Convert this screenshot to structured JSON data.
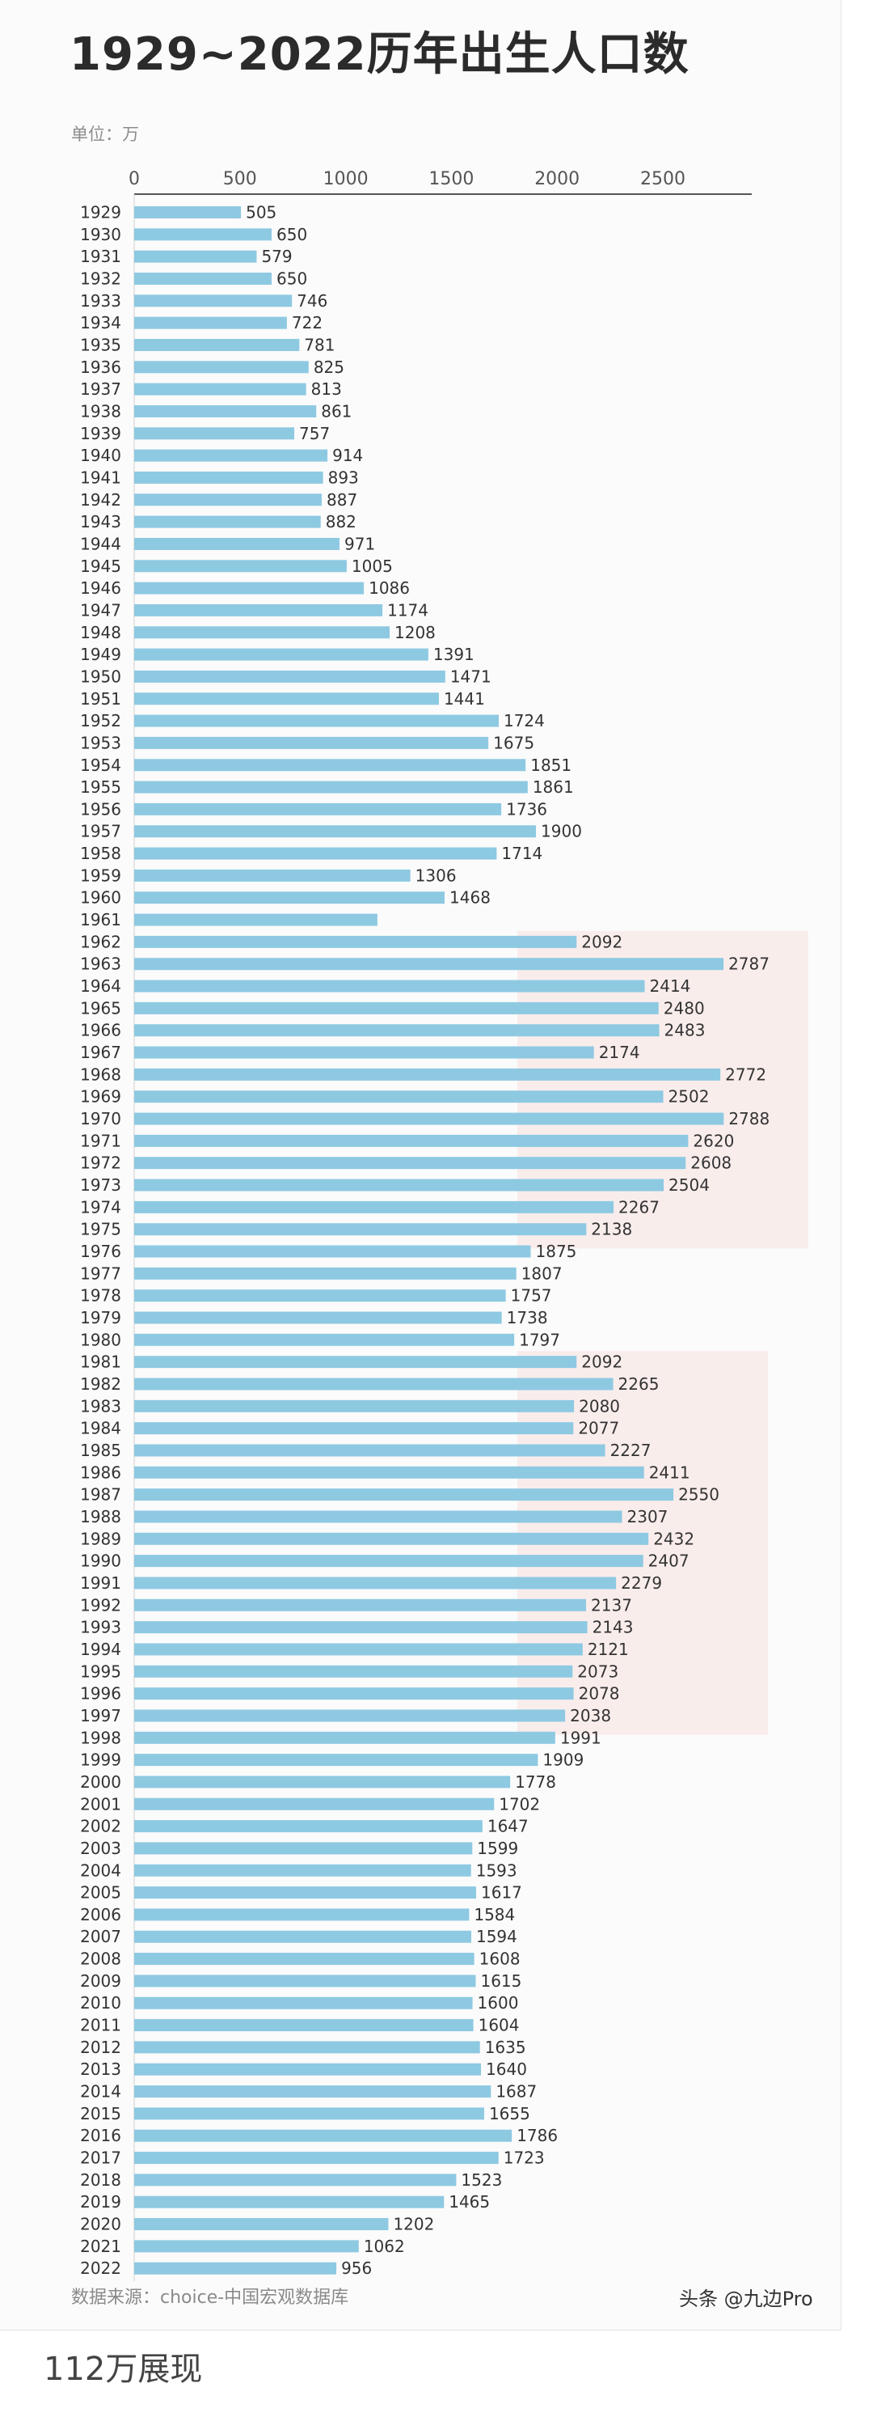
{
  "title": "1929~2022历年出生人口数",
  "unit_label": "单位：万",
  "source_label": "数据来源：choice-中国宏观数据库",
  "watermark": "头条 @九边Pro",
  "caption": "112万展现",
  "colors": {
    "bar": "#8ec9e2",
    "label": "#333333",
    "axis": "#555555",
    "highlight": "#f9e4e2"
  },
  "chart_data": {
    "type": "bar",
    "orientation": "horizontal",
    "title": "1929~2022历年出生人口数",
    "xlabel": "",
    "ylabel": "",
    "unit": "万",
    "xlim": [
      0,
      2900
    ],
    "x_ticks": [
      0,
      500,
      1000,
      1500,
      2000,
      2500
    ],
    "grid": false,
    "categories": [
      "1929",
      "1930",
      "1931",
      "1932",
      "1933",
      "1934",
      "1935",
      "1936",
      "1937",
      "1938",
      "1939",
      "1940",
      "1941",
      "1942",
      "1943",
      "1944",
      "1945",
      "1946",
      "1947",
      "1948",
      "1949",
      "1950",
      "1951",
      "1952",
      "1953",
      "1954",
      "1955",
      "1956",
      "1957",
      "1958",
      "1959",
      "1960",
      "1961",
      "1962",
      "1963",
      "1964",
      "1965",
      "1966",
      "1967",
      "1968",
      "1969",
      "1970",
      "1971",
      "1972",
      "1973",
      "1974",
      "1975",
      "1976",
      "1977",
      "1978",
      "1979",
      "1980",
      "1981",
      "1982",
      "1983",
      "1984",
      "1985",
      "1986",
      "1987",
      "1988",
      "1989",
      "1990",
      "1991",
      "1992",
      "1993",
      "1994",
      "1995",
      "1996",
      "1997",
      "1998",
      "1999",
      "2000",
      "2001",
      "2002",
      "2003",
      "2004",
      "2005",
      "2006",
      "2007",
      "2008",
      "2009",
      "2010",
      "2011",
      "2012",
      "2013",
      "2014",
      "2015",
      "2016",
      "2017",
      "2018",
      "2019",
      "2020",
      "2021",
      "2022"
    ],
    "values": [
      505,
      650,
      579,
      650,
      746,
      722,
      781,
      825,
      813,
      861,
      757,
      914,
      893,
      887,
      882,
      971,
      1005,
      1086,
      1174,
      1208,
      1391,
      1471,
      1441,
      1724,
      1675,
      1851,
      1861,
      1736,
      1900,
      1714,
      1306,
      1468,
      1150,
      2092,
      2787,
      2414,
      2480,
      2483,
      2174,
      2772,
      2502,
      2788,
      2620,
      2608,
      2504,
      2267,
      2138,
      1875,
      1807,
      1757,
      1738,
      1797,
      2092,
      2265,
      2080,
      2077,
      2227,
      2411,
      2550,
      2307,
      2432,
      2407,
      2279,
      2137,
      2143,
      2121,
      2073,
      2078,
      2038,
      1991,
      1909,
      1778,
      1702,
      1647,
      1599,
      1593,
      1617,
      1584,
      1594,
      1608,
      1615,
      1600,
      1604,
      1635,
      1640,
      1687,
      1655,
      1786,
      1723,
      1523,
      1465,
      1202,
      1062,
      956
    ],
    "data_labels": [
      "505",
      "650",
      "579",
      "650",
      "746",
      "722",
      "781",
      "825",
      "813",
      "861",
      "757",
      "914",
      "893",
      "887",
      "882",
      "971",
      "1005",
      "1086",
      "1174",
      "1208",
      "1391",
      "1471",
      "1441",
      "1724",
      "1675",
      "1851",
      "1861",
      "1736",
      "1900",
      "1714",
      "1306",
      "1468",
      "",
      "2092",
      "2787",
      "2414",
      "2480",
      "2483",
      "2174",
      "2772",
      "2502",
      "2788",
      "2620",
      "2608",
      "2504",
      "2267",
      "2138",
      "1875",
      "1807",
      "1757",
      "1738",
      "1797",
      "2092",
      "2265",
      "2080",
      "2077",
      "2227",
      "2411",
      "2550",
      "2307",
      "2432",
      "2407",
      "2279",
      "2137",
      "2143",
      "2121",
      "2073",
      "2078",
      "2038",
      "1991",
      "1909",
      "1778",
      "1702",
      "1647",
      "1599",
      "1593",
      "1617",
      "1584",
      "1594",
      "1608",
      "1615",
      "1600",
      "1604",
      "1635",
      "1640",
      "1687",
      "1655",
      "1786",
      "1723",
      "1523",
      "1465",
      "1202",
      "1062",
      "956"
    ]
  }
}
